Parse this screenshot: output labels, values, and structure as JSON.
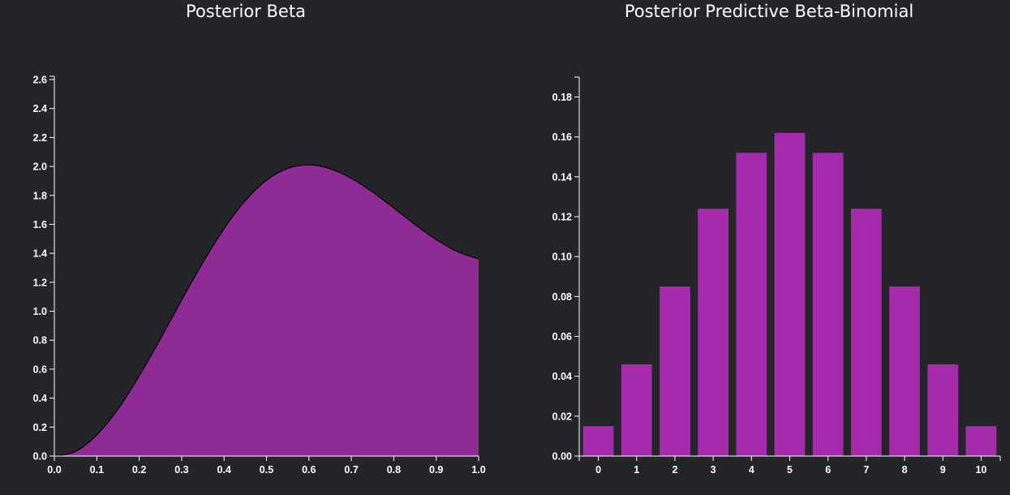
{
  "chart_data": [
    {
      "type": "area",
      "title": "Posterior Beta",
      "xlabel": "",
      "ylabel": "",
      "xlim": [
        0,
        1
      ],
      "ylim": [
        0,
        2.6
      ],
      "x_ticks": [
        "0.0",
        "0.1",
        "0.2",
        "0.3",
        "0.4",
        "0.5",
        "0.6",
        "0.7",
        "0.8",
        "0.9",
        "1.0"
      ],
      "y_ticks": [
        "0.0",
        "0.2",
        "0.4",
        "0.6",
        "0.8",
        "1.0",
        "1.2",
        "1.4",
        "1.6",
        "1.8",
        "2.0",
        "2.2",
        "2.4",
        "2.6"
      ],
      "x": [
        0.0,
        0.05,
        0.1,
        0.15,
        0.2,
        0.25,
        0.3,
        0.35,
        0.4,
        0.45,
        0.5,
        0.55,
        0.6,
        0.65,
        0.7,
        0.75,
        0.8,
        0.85,
        0.9,
        0.95,
        1.0
      ],
      "y": [
        0.0,
        0.032,
        0.146,
        0.325,
        0.553,
        0.81,
        1.077,
        1.336,
        1.57,
        1.764,
        1.905,
        1.987,
        2.011,
        1.984,
        1.917,
        1.823,
        1.713,
        1.599,
        1.495,
        1.412,
        1.361
      ],
      "grid": false,
      "colors": {
        "fill": "#8e2b94",
        "stroke": "#000000"
      }
    },
    {
      "type": "bar",
      "title": "Posterior Predictive Beta-Binomial",
      "xlabel": "",
      "ylabel": "",
      "ylim": [
        0,
        0.19
      ],
      "categories": [
        "0",
        "1",
        "2",
        "3",
        "4",
        "5",
        "6",
        "7",
        "8",
        "9",
        "10"
      ],
      "values": [
        0.015,
        0.046,
        0.085,
        0.124,
        0.152,
        0.162,
        0.152,
        0.124,
        0.085,
        0.046,
        0.015
      ],
      "y_ticks": [
        "0.00",
        "0.02",
        "0.04",
        "0.06",
        "0.08",
        "0.10",
        "0.12",
        "0.14",
        "0.16",
        "0.18"
      ],
      "grid": false,
      "colors": {
        "bar": "#a32bac"
      }
    }
  ]
}
